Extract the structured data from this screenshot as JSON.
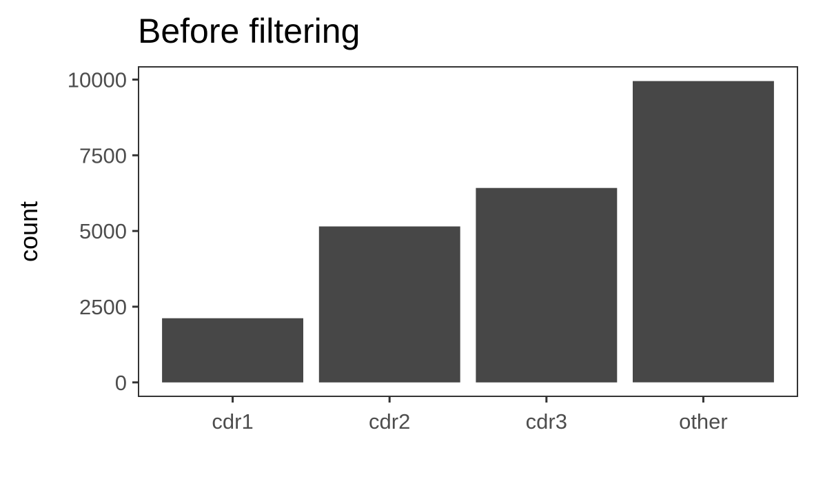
{
  "chart_data": {
    "type": "bar",
    "title": "Before filtering",
    "xlabel": "",
    "ylabel": "count",
    "categories": [
      "cdr1",
      "cdr2",
      "cdr3",
      "other"
    ],
    "values": [
      2120,
      5150,
      6420,
      9950
    ],
    "ylim": [
      -460,
      10420
    ],
    "yticks": [
      0,
      2500,
      5000,
      7500,
      10000
    ],
    "ytick_labels": [
      "0",
      "2500",
      "5000",
      "7500",
      "10000"
    ],
    "bar_color": "#474747",
    "grid": false,
    "legend": "none"
  }
}
